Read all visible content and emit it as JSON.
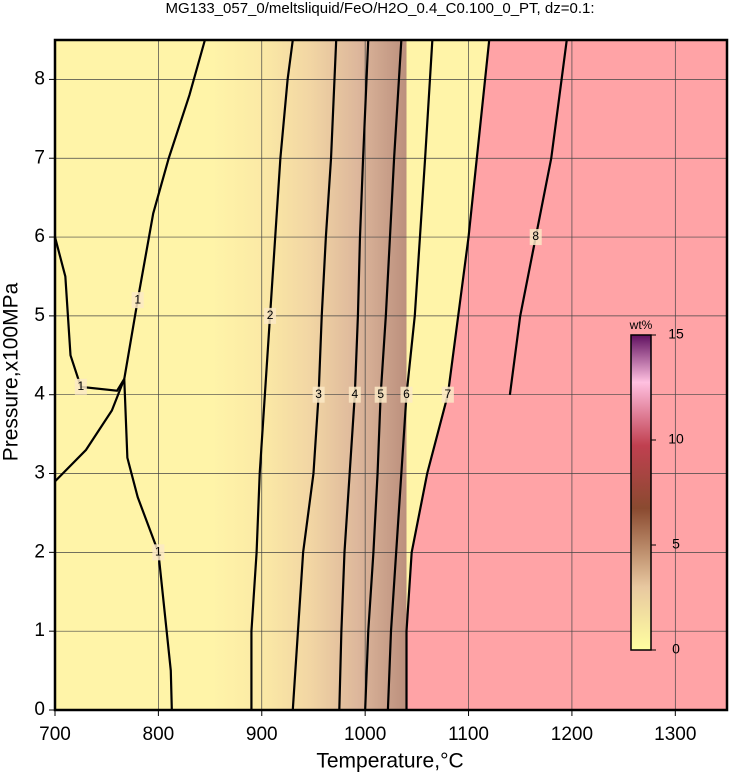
{
  "chart_data": {
    "type": "contour",
    "title": "MG133_057_0/meltsliquid/FeO/H2O_0.4_C0.100_0_PT, dz=0.1:",
    "x_label": "Temperature,°C",
    "y_label": "Pressure,x100MPa",
    "xlim": [
      700,
      1350
    ],
    "xticks": [
      700,
      800,
      900,
      1000,
      1100,
      1200,
      1300
    ],
    "ylim": [
      0,
      8.5
    ],
    "yticks": [
      0,
      1,
      2,
      3,
      4,
      5,
      6,
      7,
      8
    ],
    "grid": true,
    "contours": [
      {
        "level": 1,
        "x": [
          813,
          812,
          808,
          800,
          780,
          770,
          767
        ],
        "y": [
          0,
          0.5,
          1,
          2,
          2.7,
          3.2,
          4.2
        ]
      },
      {
        "level": 1,
        "x": [
          700,
          730,
          755,
          767,
          780,
          795,
          810,
          830,
          845
        ],
        "y": [
          2.9,
          3.3,
          3.8,
          4.2,
          5.2,
          6.3,
          7,
          7.8,
          8.5
        ]
      },
      {
        "level": 1,
        "x": [
          700,
          710,
          715,
          725,
          760,
          767
        ],
        "y": [
          6.0,
          5.5,
          4.5,
          4.1,
          4.05,
          4.2
        ]
      },
      {
        "level": 2,
        "x": [
          890,
          890,
          895,
          898,
          903,
          908,
          913,
          918,
          925,
          930
        ],
        "y": [
          0,
          1,
          2,
          3,
          4,
          5,
          6,
          7,
          8,
          8.5
        ]
      },
      {
        "level": 3,
        "x": [
          930,
          935,
          940,
          945,
          950,
          955,
          958,
          962,
          967,
          972
        ],
        "y": [
          0,
          1,
          2,
          2.5,
          3,
          4,
          5,
          6,
          7,
          8.5
        ]
      },
      {
        "level": 4,
        "x": [
          975,
          977,
          980,
          985,
          990,
          993,
          995,
          998,
          1003
        ],
        "y": [
          0,
          1,
          2,
          3,
          4,
          5,
          6,
          7,
          8.5
        ]
      },
      {
        "level": 5,
        "x": [
          1000,
          1003,
          1008,
          1012,
          1015,
          1020,
          1024,
          1028,
          1035
        ],
        "y": [
          0,
          1,
          2,
          3,
          4,
          5,
          6,
          7,
          8.5
        ]
      },
      {
        "level": 6,
        "x": [
          1022,
          1025,
          1030,
          1035,
          1040,
          1048,
          1053,
          1058,
          1065
        ],
        "y": [
          0,
          1,
          2,
          3,
          4,
          5,
          6,
          7,
          8.5
        ]
      },
      {
        "level": 7,
        "x": [
          1040,
          1040,
          1045,
          1060,
          1080,
          1090,
          1100,
          1108,
          1120
        ],
        "y": [
          0,
          1,
          2,
          3,
          4,
          5,
          6,
          7,
          8.5
        ]
      },
      {
        "level": 8,
        "x": [
          1140,
          1150,
          1165,
          1180,
          1195
        ],
        "y": [
          4,
          5,
          6,
          7,
          8.5
        ]
      }
    ],
    "colorbar": {
      "label": "wt%",
      "lim": [
        0,
        15
      ],
      "ticks": [
        0,
        5,
        10,
        15
      ]
    }
  }
}
